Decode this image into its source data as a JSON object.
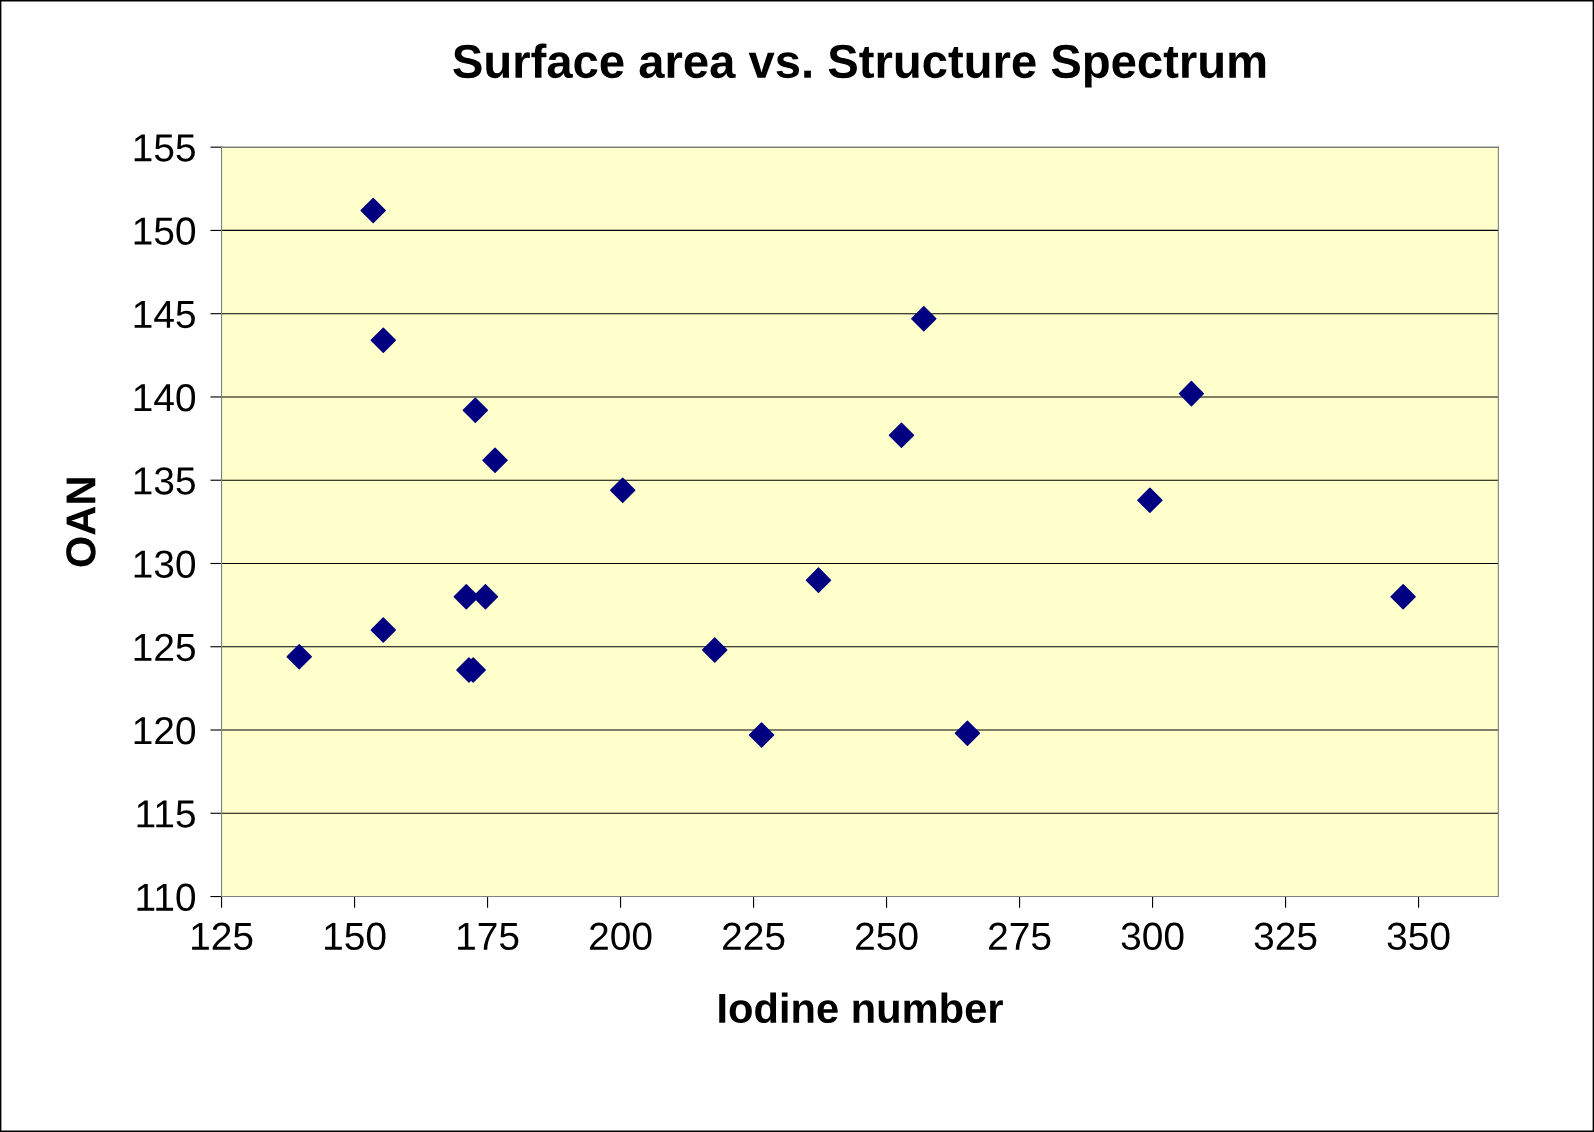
{
  "chart_data": {
    "type": "scatter",
    "title": "Surface area vs. Structure Spectrum",
    "xlabel": "Iodine number",
    "ylabel": "OAN",
    "x": [
      139.6,
      153.5,
      155.4,
      155.4,
      171.0,
      174.6,
      171.5,
      172.3,
      172.7,
      176.4,
      200.4,
      217.7,
      226.5,
      237.2,
      252.8,
      257.0,
      265.2,
      299.5,
      307.3,
      347.1
    ],
    "series": [
      {
        "color": "#000080",
        "values": [
          124.4,
          151.2,
          143.4,
          126.0,
          128.0,
          128.0,
          123.6,
          123.6,
          139.2,
          136.2,
          134.4,
          124.8,
          119.7,
          129.0,
          137.7,
          144.7,
          119.8,
          133.8,
          140.2,
          128.0
        ]
      }
    ],
    "xlim": [
      125,
      365
    ],
    "xticks": [
      125,
      150,
      175,
      200,
      225,
      250,
      275,
      300,
      325,
      350
    ],
    "ylim": [
      110,
      155
    ],
    "yticks": [
      110,
      115,
      120,
      125,
      130,
      135,
      140,
      145,
      150,
      155
    ],
    "grid": "y",
    "marker": "diamond",
    "legend": false
  }
}
